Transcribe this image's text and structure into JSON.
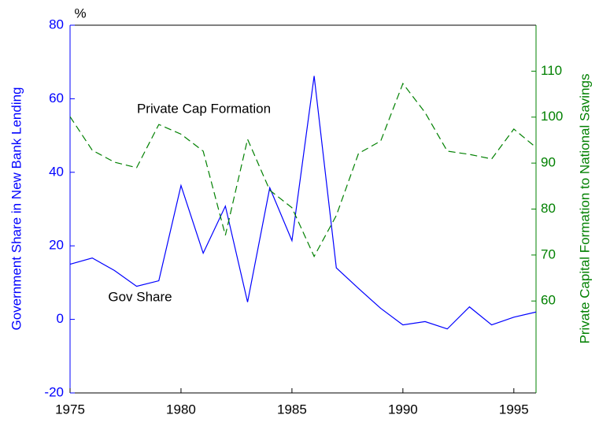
{
  "chart_data": {
    "type": "line",
    "ylabel": "Government Share in New Bank Lending",
    "y2label": "Private Capital Formation to National Savings",
    "y_unit": "%",
    "annotations": [
      "Private Cap Formation",
      "Gov Share"
    ],
    "x": [
      1975,
      1976,
      1977,
      1978,
      1979,
      1980,
      1981,
      1982,
      1983,
      1984,
      1985,
      1986,
      1987,
      1988,
      1989,
      1990,
      1991,
      1992,
      1993,
      1994,
      1995,
      1996
    ],
    "xlim": [
      1975,
      1996
    ],
    "xticks": [
      1975,
      1980,
      1985,
      1990,
      1995
    ],
    "ylim": [
      -20,
      80
    ],
    "yticks": [
      -20,
      0,
      20,
      40,
      60,
      80
    ],
    "y2lim": [
      40,
      120
    ],
    "y2ticks": [
      60,
      70,
      80,
      90,
      100,
      110
    ],
    "series": [
      {
        "name": "Gov Share",
        "color": "#0000ff",
        "axis": "y",
        "dash": false,
        "values": [
          15,
          16.7,
          13.3,
          9,
          10.5,
          36.4,
          18,
          30.8,
          4.7,
          35.8,
          21.4,
          66.2,
          14,
          8.4,
          3,
          -1.5,
          -0.6,
          -2.6,
          3.4,
          -1.5,
          0.6,
          2
        ]
      },
      {
        "name": "Private Cap Formation",
        "color": "#008000",
        "axis": "y2",
        "dash": true,
        "values": [
          100.1,
          92.8,
          90.2,
          89,
          98.4,
          96.3,
          92.6,
          74.3,
          95.2,
          84.1,
          80.3,
          69.7,
          78.6,
          92.1,
          94.8,
          107.3,
          101,
          92.6,
          91.9,
          90.9,
          97.4,
          93.4
        ]
      }
    ]
  }
}
